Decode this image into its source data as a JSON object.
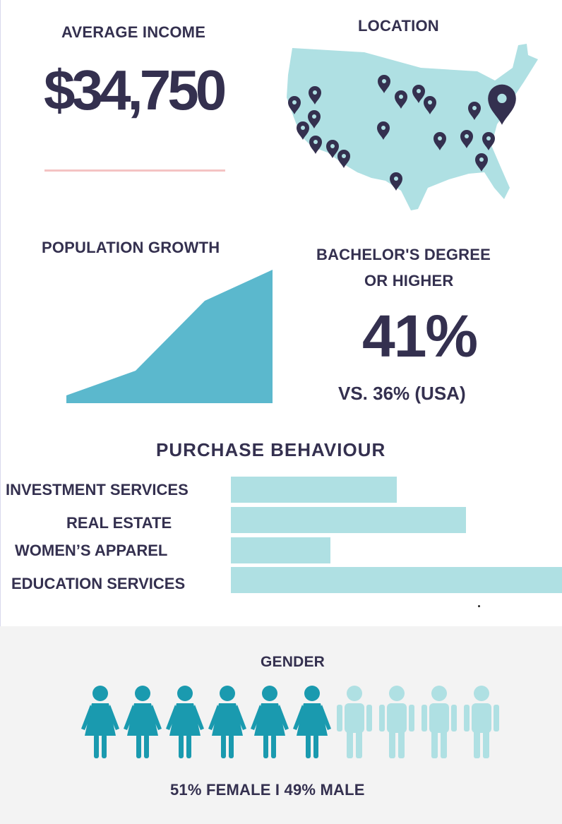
{
  "income": {
    "title": "AVERAGE INCOME",
    "value": "$34,750"
  },
  "location": {
    "title": "LOCATION",
    "map_color": "#afe0e3",
    "pin_color": "#34304f",
    "pin_icon": "map-pin-icon"
  },
  "growth": {
    "title": "POPULATION GROWTH",
    "fill_color": "#5bb8cd"
  },
  "education": {
    "title_line1": "BACHELOR'S DEGREE",
    "title_line2": "OR HIGHER",
    "value": "41%",
    "comparison": "VS. 36% (USA)"
  },
  "purchase": {
    "title": "PURCHASE BEHAVIOUR",
    "bar_color": "#afe0e3",
    "categories": [
      {
        "label": "INVESTMENT SERVICES",
        "fraction": 0.5
      },
      {
        "label": "REAL ESTATE",
        "fraction": 0.71
      },
      {
        "label": "WOMEN’S APPAREL",
        "fraction": 0.3
      },
      {
        "label": "EDUCATION SERVICES",
        "fraction": 1.0
      }
    ]
  },
  "gender": {
    "title": "GENDER",
    "summary": "51% FEMALE  I  49% MALE",
    "female_icons": 6,
    "male_icons": 4,
    "female_color": "#1a9aaf",
    "male_color": "#afe0e3"
  }
}
